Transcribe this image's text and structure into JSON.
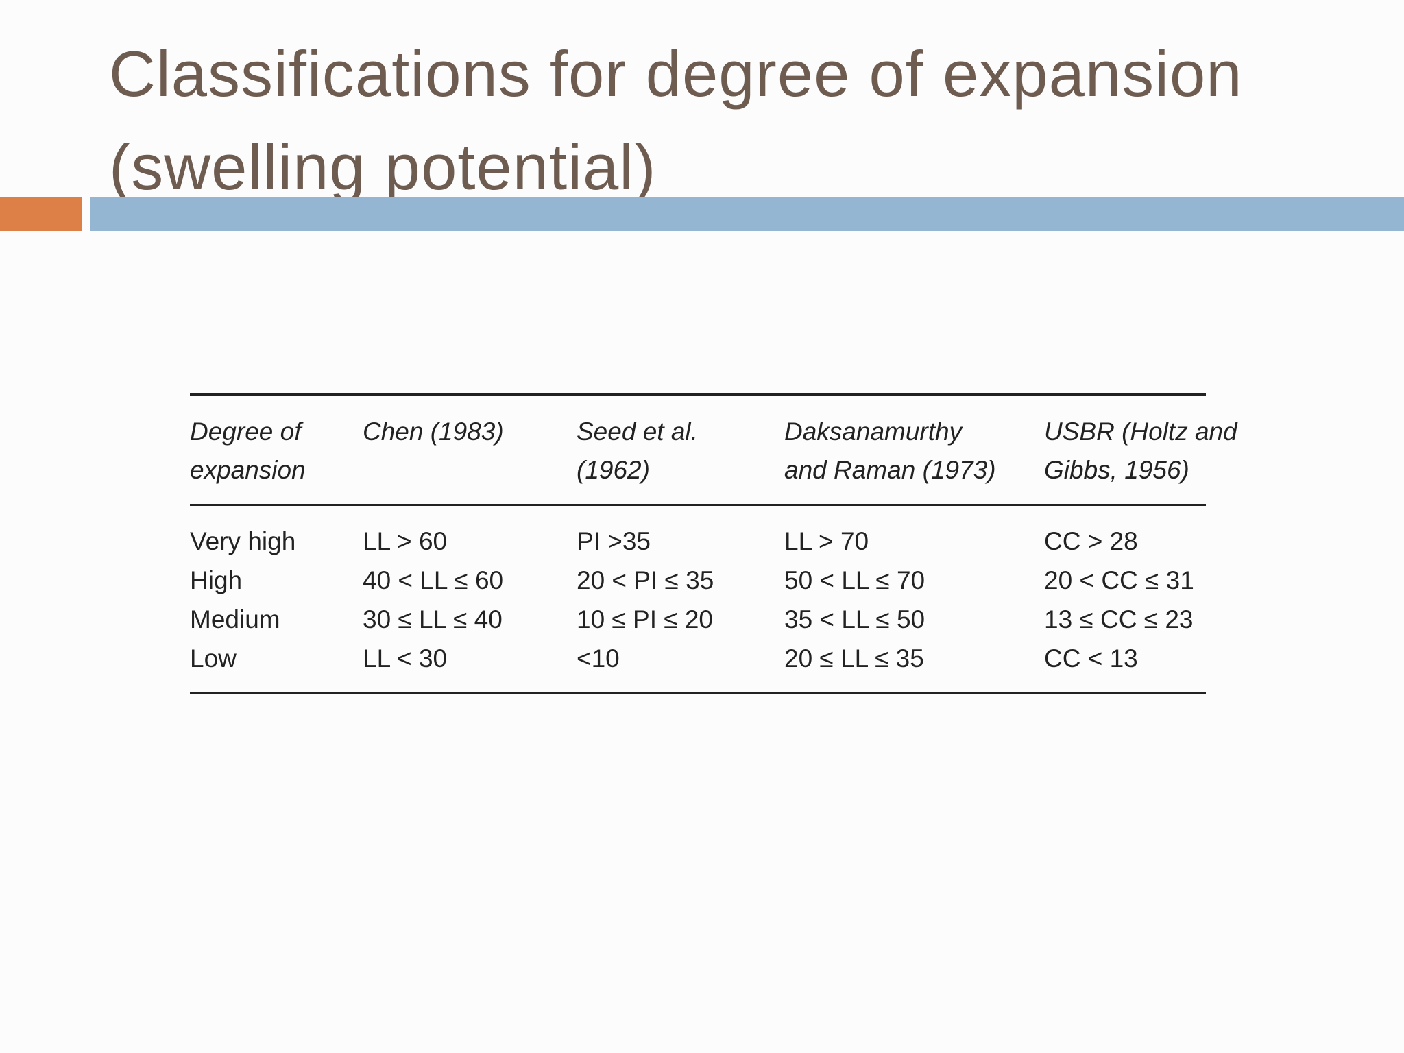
{
  "title": "Classifications for degree of expansion (swelling potential)",
  "table": {
    "headers": [
      [
        "Degree of",
        "expansion"
      ],
      [
        "Chen (1983)"
      ],
      [
        "Seed et al.",
        "(1962)"
      ],
      [
        "Daksanamurthy",
        "and Raman (1973)"
      ],
      [
        "USBR (Holtz and",
        "Gibbs, 1956)"
      ]
    ],
    "rows": [
      [
        "Very high",
        "LL > 60",
        "PI >35",
        "LL > 70",
        "CC > 28"
      ],
      [
        "High",
        "40 < LL ≤ 60",
        "20 < PI ≤ 35",
        "50 < LL ≤ 70",
        "20 < CC ≤ 31"
      ],
      [
        "Medium",
        "30 ≤ LL ≤ 40",
        "10 ≤ PI ≤ 20",
        "35 < LL ≤ 50",
        "13 ≤ CC ≤ 23"
      ],
      [
        "Low",
        "LL < 30",
        "<10",
        "20 ≤ LL ≤ 35",
        "CC < 13"
      ]
    ]
  }
}
